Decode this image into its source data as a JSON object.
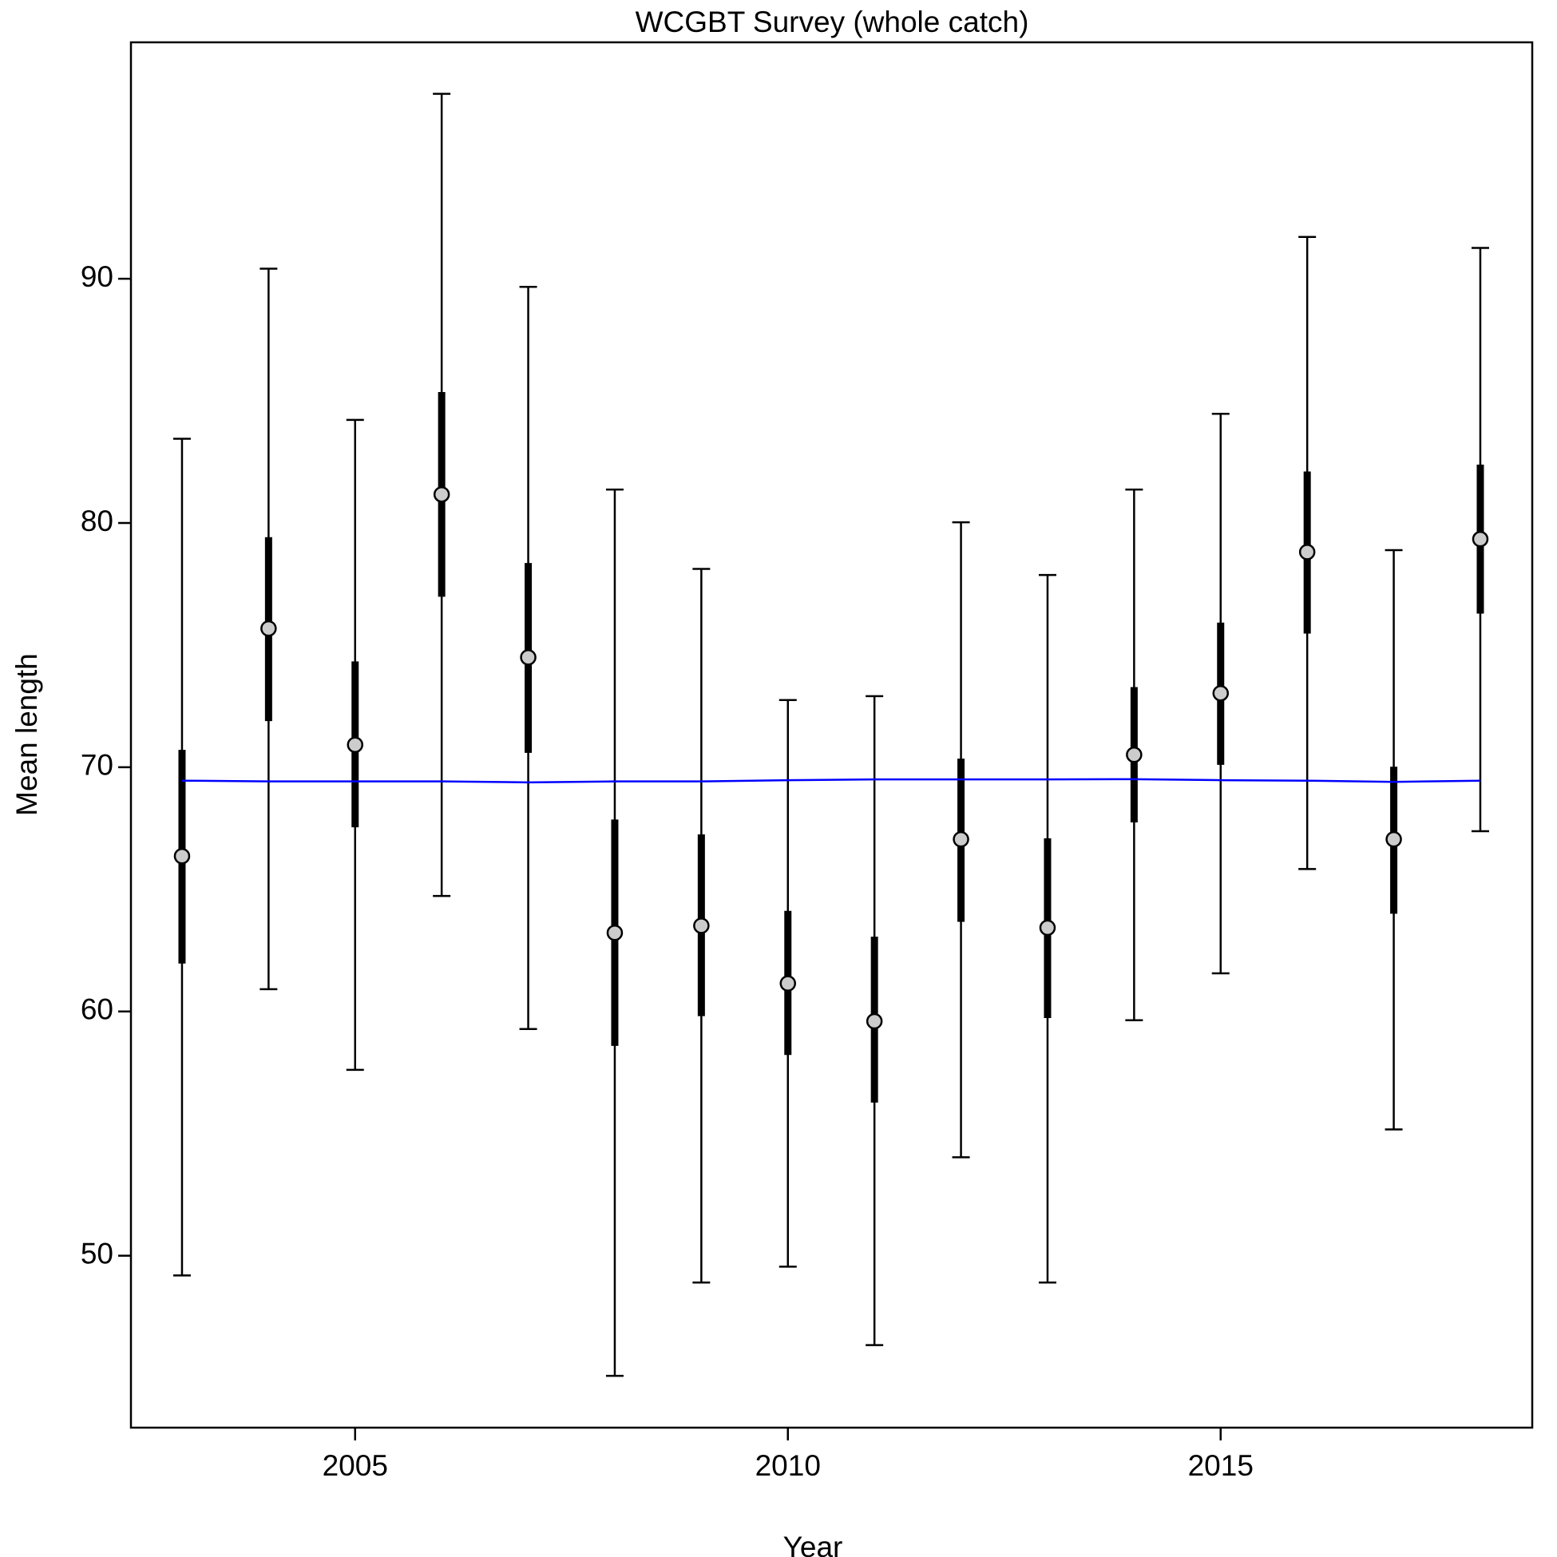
{
  "chart_data": {
    "type": "interval",
    "title": "WCGBT Survey (whole catch)",
    "x_label": "Year",
    "y_label": "Mean length",
    "x": [
      2003,
      2004,
      2005,
      2006,
      2007,
      2008,
      2009,
      2010,
      2011,
      2012,
      2013,
      2014,
      2015,
      2016,
      2017,
      2018
    ],
    "values": [
      66.36,
      75.68,
      70.92,
      81.17,
      74.5,
      63.22,
      63.51,
      61.15,
      59.6,
      67.05,
      63.43,
      70.51,
      73.03,
      78.81,
      67.05,
      79.34
    ],
    "inner_lower": [
      61.96,
      71.89,
      67.54,
      76.98,
      70.59,
      58.59,
      59.81,
      58.22,
      56.27,
      63.67,
      59.73,
      67.74,
      70.1,
      75.47,
      64.0,
      76.29
    ],
    "inner_upper": [
      70.71,
      79.42,
      74.33,
      85.36,
      78.36,
      67.86,
      67.25,
      64.12,
      63.06,
      70.35,
      67.09,
      73.28,
      75.92,
      82.11,
      70.02,
      82.39
    ],
    "lower": [
      49.19,
      60.91,
      57.61,
      64.73,
      59.28,
      45.08,
      48.9,
      49.55,
      46.34,
      54.03,
      48.9,
      59.64,
      61.56,
      65.83,
      55.17,
      67.38
    ],
    "upper": [
      83.45,
      90.41,
      84.22,
      97.57,
      89.67,
      81.37,
      78.12,
      72.75,
      72.91,
      80.03,
      77.87,
      81.37,
      84.47,
      91.71,
      78.89,
      91.26
    ],
    "expected": [
      69.45,
      69.42,
      69.42,
      69.42,
      69.38,
      69.42,
      69.42,
      69.47,
      69.5,
      69.5,
      69.5,
      69.51,
      69.47,
      69.45,
      69.4,
      69.45
    ],
    "point_color": "#cccccc",
    "expected_color": "#0000ff",
    "xlim": [
      2002.41,
      2018.6
    ],
    "ylim": [
      42.96,
      99.68
    ],
    "xticks": [
      2005,
      2010,
      2015
    ],
    "yticks": [
      50,
      60,
      70,
      80,
      90
    ]
  }
}
